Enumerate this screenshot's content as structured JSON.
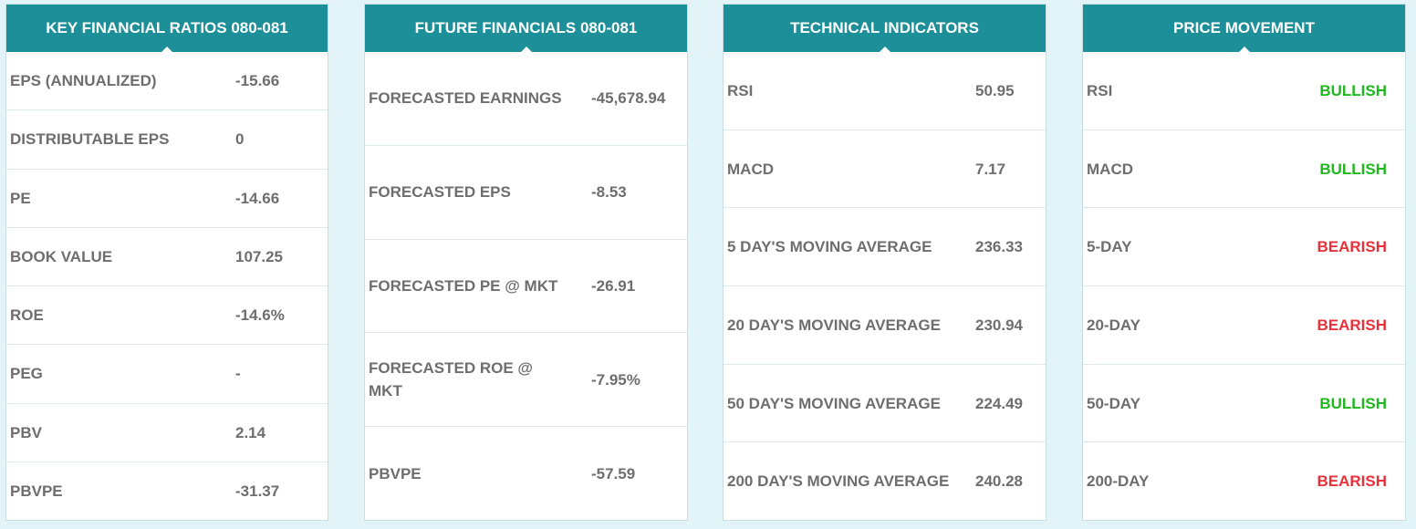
{
  "colors": {
    "header_bg": "#1c8f98",
    "page_bg": "#e2f4f8",
    "text": "#6e6e6e",
    "bullish": "#1fb81f",
    "bearish": "#e8313a"
  },
  "cards": {
    "key_ratios": {
      "title": "KEY FINANCIAL RATIOS 080-081",
      "rows": [
        {
          "label": "EPS (ANNUALIZED)",
          "value": "-15.66"
        },
        {
          "label": "DISTRIBUTABLE EPS",
          "value": "0"
        },
        {
          "label": "PE",
          "value": "-14.66"
        },
        {
          "label": "BOOK VALUE",
          "value": "107.25"
        },
        {
          "label": "ROE",
          "value": "-14.6%"
        },
        {
          "label": "PEG",
          "value": "-"
        },
        {
          "label": "PBV",
          "value": "2.14"
        },
        {
          "label": "PBVPE",
          "value": "-31.37"
        }
      ]
    },
    "future": {
      "title": "FUTURE FINANCIALS 080-081",
      "rows": [
        {
          "label": "FORECASTED EARNINGS",
          "value": "-45,678.94"
        },
        {
          "label": "FORECASTED EPS",
          "value": "-8.53"
        },
        {
          "label": "FORECASTED PE @ MKT",
          "value": "-26.91"
        },
        {
          "label": "FORECASTED ROE @ MKT",
          "value": "-7.95%"
        },
        {
          "label": "PBVPE",
          "value": "-57.59"
        }
      ]
    },
    "technical": {
      "title": "TECHNICAL INDICATORS",
      "rows": [
        {
          "label": "RSI",
          "value": "50.95"
        },
        {
          "label": "MACD",
          "value": "7.17"
        },
        {
          "label": "5 DAY'S MOVING AVERAGE",
          "value": "236.33"
        },
        {
          "label": "20 DAY'S MOVING AVERAGE",
          "value": "230.94"
        },
        {
          "label": "50 DAY'S MOVING AVERAGE",
          "value": "224.49"
        },
        {
          "label": "200 DAY'S MOVING AVERAGE",
          "value": "240.28"
        }
      ]
    },
    "price_movement": {
      "title": "PRICE MOVEMENT",
      "rows": [
        {
          "label": "RSI",
          "value": "BULLISH"
        },
        {
          "label": "MACD",
          "value": "BULLISH"
        },
        {
          "label": "5-DAY",
          "value": "BEARISH"
        },
        {
          "label": "20-DAY",
          "value": "BEARISH"
        },
        {
          "label": "50-DAY",
          "value": "BULLISH"
        },
        {
          "label": "200-DAY",
          "value": "BEARISH"
        }
      ]
    }
  }
}
